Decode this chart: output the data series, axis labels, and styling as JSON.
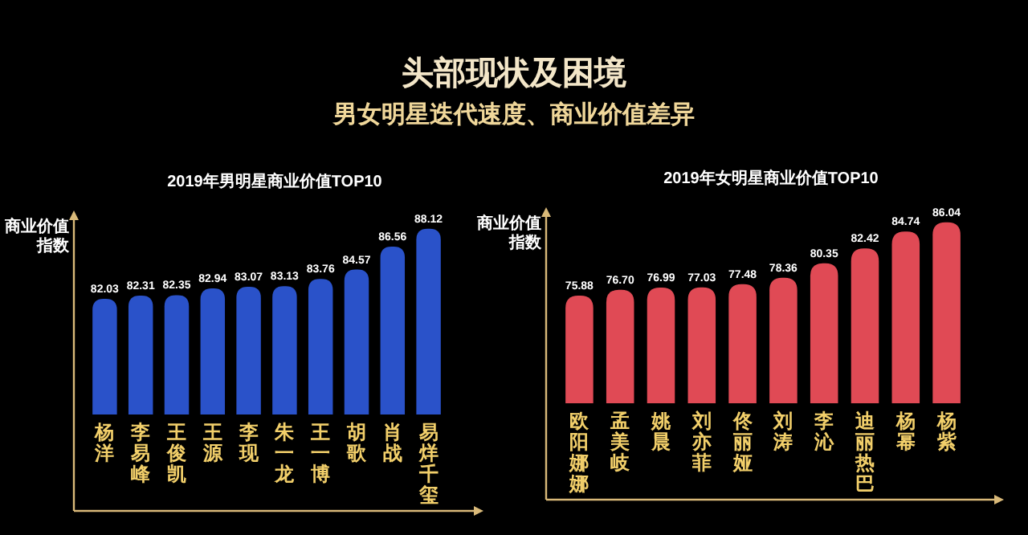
{
  "chart_data": [
    {
      "type": "bar",
      "title": "2019年男明星商业价值TOP10",
      "ylabel": "商业价值指数",
      "annotations": [
        "头部现状及困境",
        "男女明星迭代速度、商业价值差异"
      ],
      "categories": [
        "杨洋",
        "李易峰",
        "王俊凯",
        "王源",
        "李现",
        "朱一龙",
        "王一博",
        "胡歌",
        "肖战",
        "易烊千玺"
      ],
      "values": [
        82.03,
        82.31,
        82.35,
        82.94,
        83.07,
        83.13,
        83.76,
        84.57,
        86.56,
        88.12
      ],
      "color": "#2a52c9",
      "ylim": [
        72,
        89
      ],
      "data_labels": true,
      "tick_labels": "x"
    },
    {
      "type": "bar",
      "title": "2019年女明星商业价值TOP10",
      "ylabel": "商业价值指数",
      "categories": [
        "欧阳娜娜",
        "孟美岐",
        "姚晨",
        "刘亦菲",
        "佟丽娅",
        "刘涛",
        "李沁",
        "迪丽热巴",
        "杨幂",
        "杨紫"
      ],
      "values": [
        75.88,
        76.7,
        76.99,
        77.03,
        77.48,
        78.36,
        80.35,
        82.42,
        84.74,
        86.04
      ],
      "color": "#e04a55",
      "ylim": [
        61,
        87
      ],
      "value_labels": [
        "75.88",
        "76.70",
        "76.99",
        "77.03",
        "77.48",
        "78.36",
        "80.35",
        "82.42",
        "84.74",
        "86.04"
      ],
      "tick_labels": "x"
    }
  ]
}
